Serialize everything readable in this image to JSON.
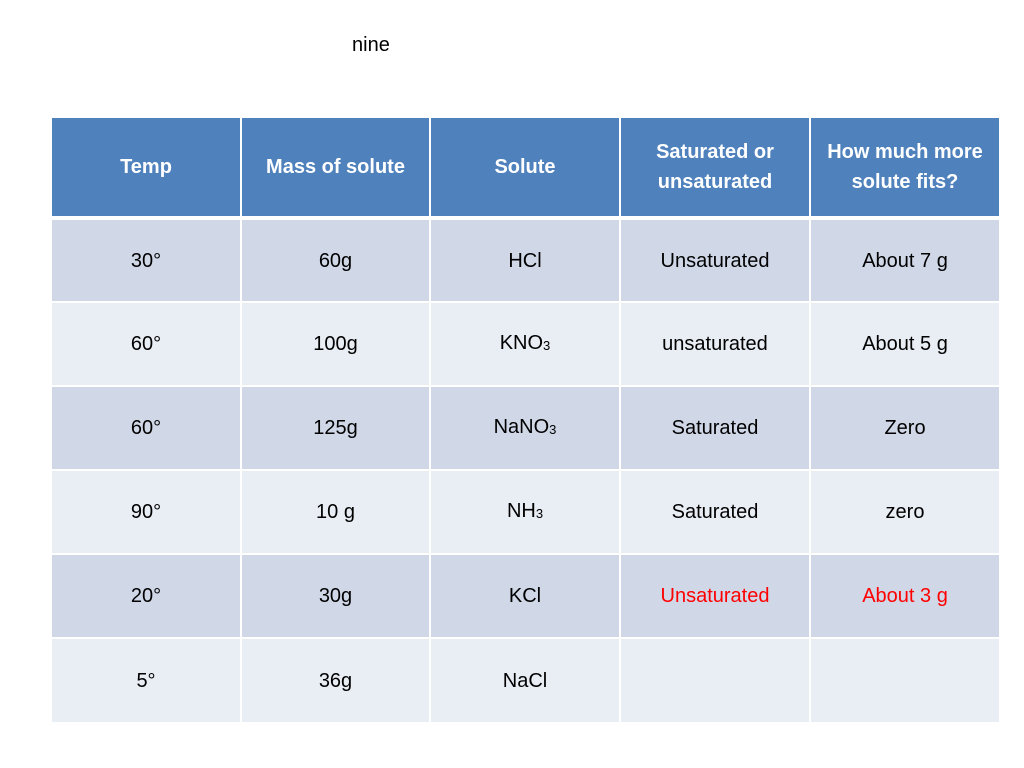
{
  "slide": {
    "title": "nine"
  },
  "table": {
    "headers": [
      "Temp",
      "Mass of solute",
      "Solute",
      "Saturated or unsaturated",
      "How much more solute fits?"
    ],
    "rows": [
      {
        "temp": "30°",
        "mass": "60g",
        "solute": "HCl",
        "solute_sub": "",
        "state": "Unsaturated",
        "more": "About 7 g",
        "highlight": false
      },
      {
        "temp": "60°",
        "mass": "100g",
        "solute": "KNO",
        "solute_sub": "3",
        "state": "unsaturated",
        "more": "About 5 g",
        "highlight": false
      },
      {
        "temp": "60°",
        "mass": "125g",
        "solute": "NaNO",
        "solute_sub": "3",
        "state": "Saturated",
        "more": "Zero",
        "highlight": false
      },
      {
        "temp": "90°",
        "mass": "10 g",
        "solute": "NH",
        "solute_sub": "3",
        "state": "Saturated",
        "more": "zero",
        "highlight": false
      },
      {
        "temp": "20°",
        "mass": "30g",
        "solute": "KCl",
        "solute_sub": "",
        "state": "Unsaturated",
        "more": "About 3 g",
        "highlight": true
      },
      {
        "temp": "5°",
        "mass": "36g",
        "solute": "NaCl",
        "solute_sub": "",
        "state": "",
        "more": "",
        "highlight": false
      }
    ]
  },
  "colors": {
    "header_bg": "#4f81bd",
    "row_odd_bg": "#d0d8e8",
    "row_even_bg": "#e9edf4",
    "highlight_text": "#ff0000"
  }
}
